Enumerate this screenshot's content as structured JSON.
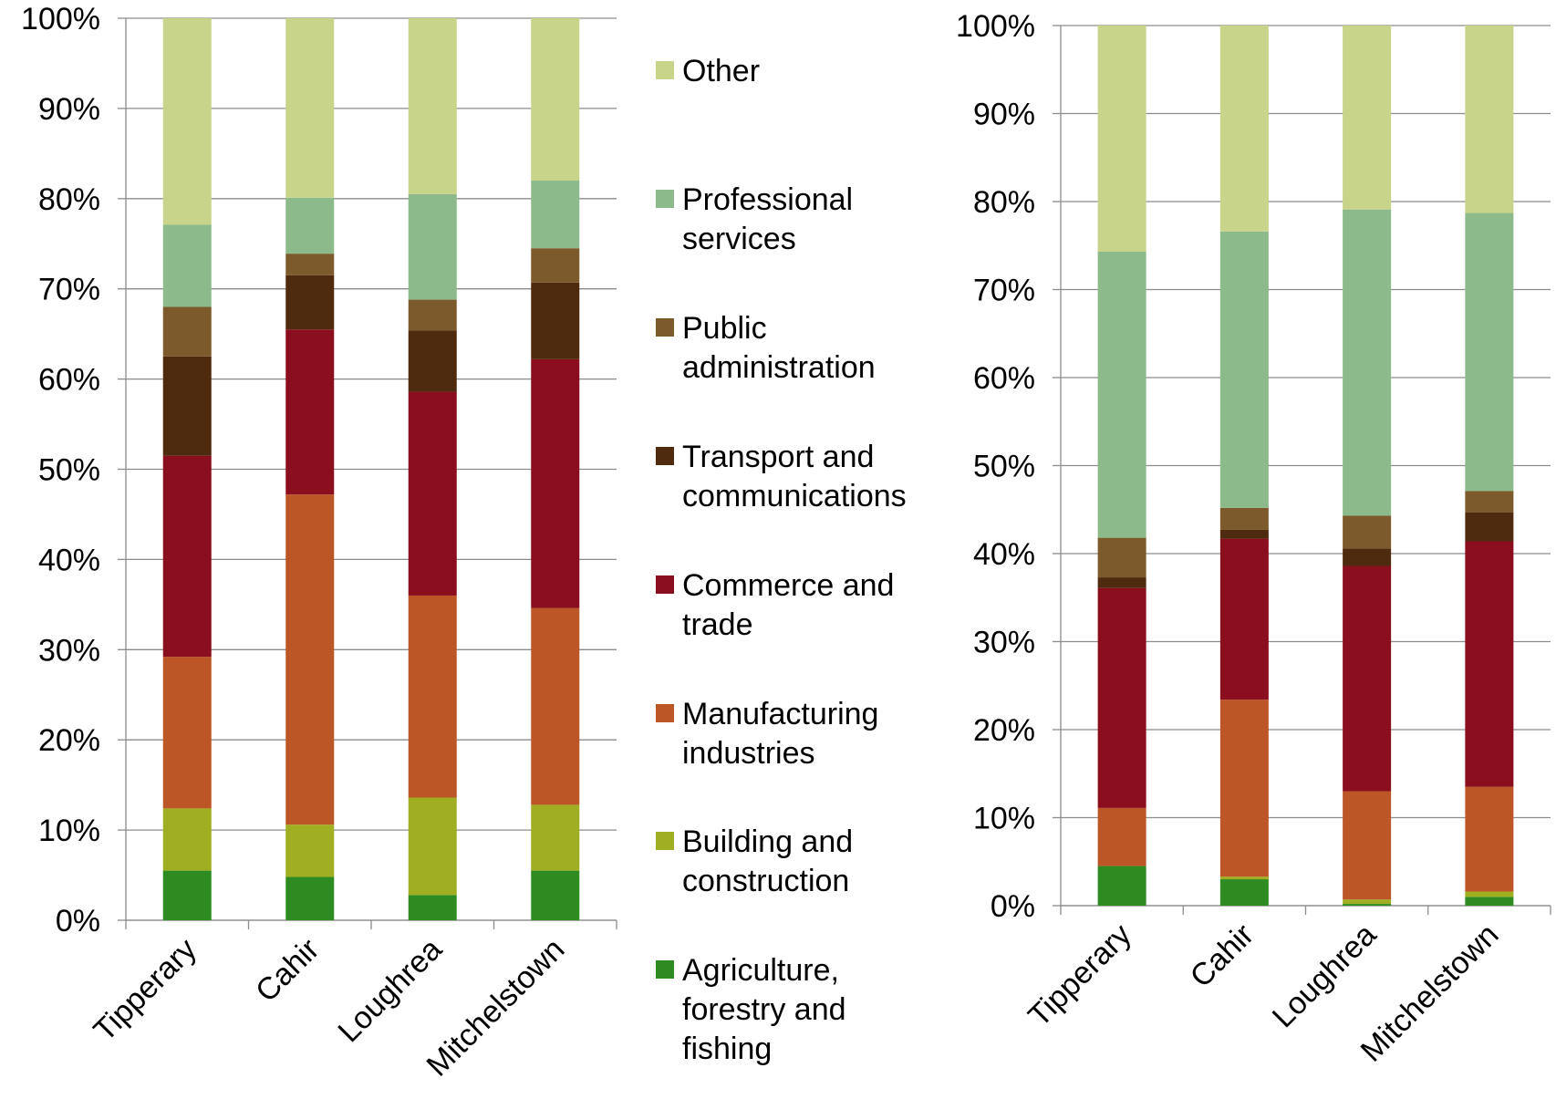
{
  "legend": {
    "entries": [
      {
        "key": "other",
        "label_lines": [
          "Other"
        ]
      },
      {
        "key": "professional",
        "label_lines": [
          "Professional",
          "services"
        ]
      },
      {
        "key": "public",
        "label_lines": [
          "Public",
          "administration"
        ]
      },
      {
        "key": "transport",
        "label_lines": [
          "Transport and",
          "communications"
        ]
      },
      {
        "key": "commerce",
        "label_lines": [
          "Commerce and",
          "trade"
        ]
      },
      {
        "key": "manufacturing",
        "label_lines": [
          "Manufacturing",
          "industries"
        ]
      },
      {
        "key": "building",
        "label_lines": [
          "Building and",
          "construction"
        ]
      },
      {
        "key": "agriculture",
        "label_lines": [
          "Agriculture,",
          "forestry and",
          "fishing"
        ]
      }
    ]
  },
  "colors": {
    "agriculture": "#2E8B22",
    "building": "#A0AE21",
    "manufacturing": "#BD5627",
    "commerce": "#8B0E1E",
    "transport": "#4E2A0E",
    "public": "#7D5A2B",
    "professional": "#8CBA8A",
    "other": "#C7D48A"
  },
  "chart_data": [
    {
      "type": "bar",
      "stacked": true,
      "percent": true,
      "categories": [
        "Tipperary",
        "Cahir",
        "Loughrea",
        "Mitchelstown"
      ],
      "ylim": [
        0,
        100
      ],
      "yticks": [
        "0%",
        "10%",
        "20%",
        "30%",
        "40%",
        "50%",
        "60%",
        "70%",
        "80%",
        "90%",
        "100%"
      ],
      "series": [
        {
          "key": "agriculture",
          "name": "Agriculture, forestry and fishing",
          "values": [
            5.5,
            4.8,
            2.8,
            5.5
          ]
        },
        {
          "key": "building",
          "name": "Building and construction",
          "values": [
            6.9,
            5.8,
            10.8,
            7.3
          ]
        },
        {
          "key": "manufacturing",
          "name": "Manufacturing industries",
          "values": [
            16.8,
            36.6,
            22.4,
            21.8
          ]
        },
        {
          "key": "commerce",
          "name": "Commerce and trade",
          "values": [
            22.3,
            18.3,
            22.6,
            27.6
          ]
        },
        {
          "key": "transport",
          "name": "Transport and communications",
          "values": [
            11.0,
            6.0,
            6.8,
            8.5
          ]
        },
        {
          "key": "public",
          "name": "Public administration",
          "values": [
            5.5,
            2.4,
            3.4,
            3.8
          ]
        },
        {
          "key": "professional",
          "name": "Professional services",
          "values": [
            9.1,
            6.2,
            11.7,
            7.5
          ]
        },
        {
          "key": "other",
          "name": "Other",
          "values": [
            22.9,
            19.9,
            19.5,
            18.0
          ]
        }
      ]
    },
    {
      "type": "bar",
      "stacked": true,
      "percent": true,
      "categories": [
        "Tipperary",
        "Cahir",
        "Loughrea",
        "Mitchelstown"
      ],
      "ylim": [
        0,
        100
      ],
      "yticks": [
        "0%",
        "10%",
        "20%",
        "30%",
        "40%",
        "50%",
        "60%",
        "70%",
        "80%",
        "90%",
        "100%"
      ],
      "series": [
        {
          "key": "agriculture",
          "name": "Agriculture, forestry and fishing",
          "values": [
            4.5,
            3.0,
            0.2,
            1.0
          ]
        },
        {
          "key": "building",
          "name": "Building and construction",
          "values": [
            0.0,
            0.3,
            0.5,
            0.6
          ]
        },
        {
          "key": "manufacturing",
          "name": "Manufacturing industries",
          "values": [
            6.6,
            20.1,
            12.3,
            11.9
          ]
        },
        {
          "key": "commerce",
          "name": "Commerce and trade",
          "values": [
            25.0,
            18.3,
            25.6,
            27.9
          ]
        },
        {
          "key": "transport",
          "name": "Transport and communications",
          "values": [
            1.2,
            1.0,
            2.0,
            3.3
          ]
        },
        {
          "key": "public",
          "name": "Public administration",
          "values": [
            4.5,
            2.5,
            3.7,
            2.4
          ]
        },
        {
          "key": "professional",
          "name": "Professional services",
          "values": [
            32.5,
            31.4,
            34.8,
            31.6
          ]
        },
        {
          "key": "other",
          "name": "Other",
          "values": [
            25.7,
            23.4,
            20.9,
            21.3
          ]
        }
      ]
    }
  ]
}
